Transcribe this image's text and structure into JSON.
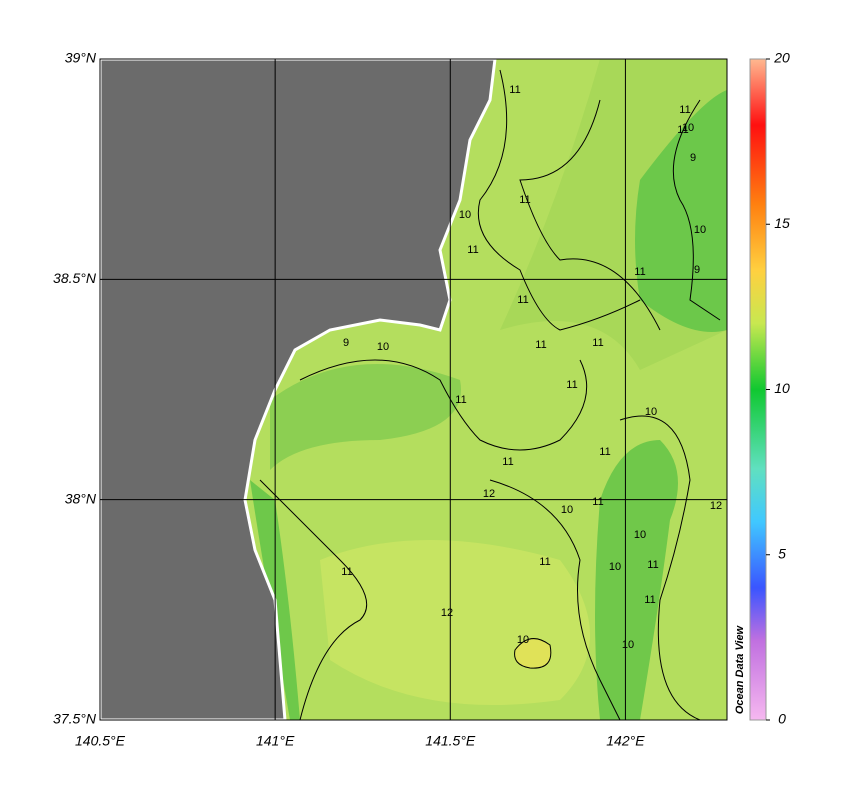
{
  "map": {
    "xlim": [
      140.5,
      142.29
    ],
    "ylim": [
      37.5,
      39
    ],
    "xticks": [
      {
        "value": 140.5,
        "label": "140.5°E"
      },
      {
        "value": 141,
        "label": "141°E"
      },
      {
        "value": 141.5,
        "label": "141.5°E"
      },
      {
        "value": 142,
        "label": "142°E"
      }
    ],
    "yticks": [
      {
        "value": 37.5,
        "label": "37.5°N"
      },
      {
        "value": 38,
        "label": "38°N"
      },
      {
        "value": 38.5,
        "label": "38.5°N"
      },
      {
        "value": 39,
        "label": "39°N"
      }
    ],
    "colorbar": {
      "lim": [
        0,
        20
      ],
      "ticks": [
        0,
        5,
        10,
        15,
        20
      ]
    },
    "watermark": "Ocean Data View",
    "contour_labels": [
      "11",
      "11",
      "10",
      "9",
      "11",
      "11",
      "10",
      "10",
      "9",
      "10",
      "9",
      "11",
      "11",
      "11",
      "11",
      "11",
      "11",
      "11",
      "10",
      "11",
      "11",
      "10",
      "10",
      "11",
      "12",
      "12",
      "12",
      "10",
      "11",
      "11",
      "10",
      "10",
      "11",
      "11"
    ]
  }
}
